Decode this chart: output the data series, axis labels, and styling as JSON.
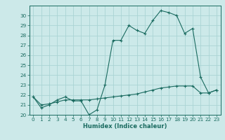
{
  "title": "",
  "xlabel": "Humidex (Indice chaleur)",
  "bg_color": "#cce9e9",
  "line_color": "#1a6b60",
  "grid_color": "#aad4d4",
  "series1_y": [
    21.8,
    20.7,
    21.0,
    21.5,
    21.8,
    21.4,
    21.4,
    20.0,
    20.5,
    23.0,
    27.5,
    27.5,
    29.0,
    28.5,
    28.2,
    29.5,
    30.5,
    30.3,
    30.0,
    28.2,
    28.7,
    23.8,
    22.2,
    22.5
  ],
  "series2_y": [
    21.8,
    21.0,
    21.1,
    21.3,
    21.5,
    21.5,
    21.5,
    21.5,
    21.6,
    21.7,
    21.8,
    21.9,
    22.0,
    22.1,
    22.3,
    22.5,
    22.7,
    22.8,
    22.9,
    22.9,
    22.9,
    22.2,
    22.2,
    22.5
  ],
  "xlim": [
    -0.5,
    23.5
  ],
  "ylim": [
    20,
    31
  ],
  "yticks": [
    20,
    21,
    22,
    23,
    24,
    25,
    26,
    27,
    28,
    29,
    30
  ],
  "xticks": [
    0,
    1,
    2,
    3,
    4,
    5,
    6,
    7,
    8,
    9,
    10,
    11,
    12,
    13,
    14,
    15,
    16,
    17,
    18,
    19,
    20,
    21,
    22,
    23
  ],
  "tick_fontsize": 5.2,
  "xlabel_fontsize": 6.0
}
